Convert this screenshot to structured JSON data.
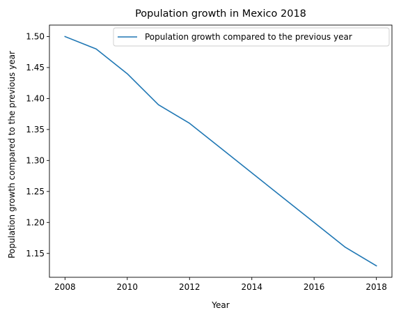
{
  "chart_data": {
    "type": "line",
    "title": "Population growth in Mexico 2018",
    "xlabel": "Year",
    "ylabel": "Population growth compared to the previous year",
    "x": [
      2008,
      2009,
      2010,
      2011,
      2012,
      2013,
      2014,
      2015,
      2016,
      2017,
      2018
    ],
    "series": [
      {
        "name": "Population growth compared to the previous year",
        "values": [
          1.5,
          1.48,
          1.44,
          1.39,
          1.36,
          1.32,
          1.28,
          1.24,
          1.2,
          1.16,
          1.13
        ],
        "color": "#1f77b4"
      }
    ],
    "xlim": [
      2007.5,
      2018.5
    ],
    "ylim": [
      1.1115,
      1.5185
    ],
    "xticks": [
      "2008",
      "2010",
      "2012",
      "2014",
      "2016",
      "2018"
    ],
    "yticks": [
      "1.15",
      "1.20",
      "1.25",
      "1.30",
      "1.35",
      "1.40",
      "1.45",
      "1.50"
    ],
    "legend_position": "top-right",
    "grid": false
  }
}
